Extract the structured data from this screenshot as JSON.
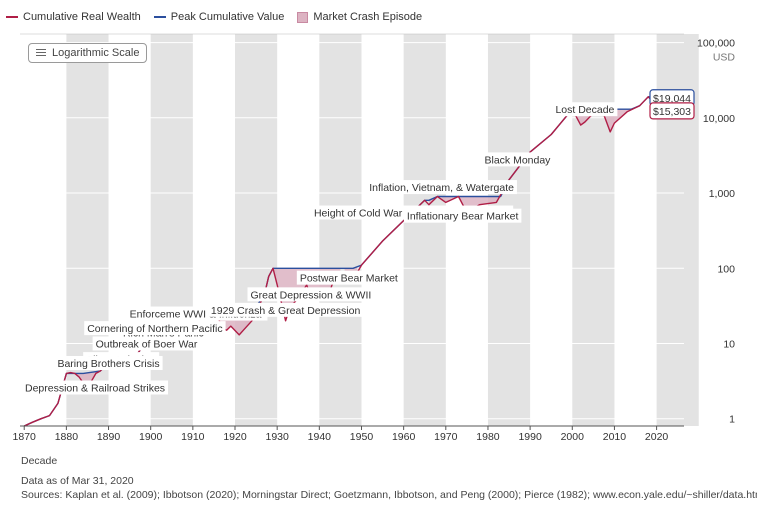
{
  "legend": [
    {
      "label": "Cumulative Real Wealth",
      "color": "#b01e46",
      "kind": "line"
    },
    {
      "label": "Peak Cumulative Value",
      "color": "#2b4f9e",
      "kind": "line"
    },
    {
      "label": "Market Crash Episode",
      "color": "#dcb3c2",
      "kind": "box"
    }
  ],
  "scale_button": {
    "label": "Logarithmic Scale"
  },
  "footer": {
    "xlabel": "Decade",
    "data_as_of": "Data as of Mar 31, 2020",
    "sources": "Sources: Kaplan et al. (2009); Ibbotson (2020); Morningstar Direct; Goetzmann, Ibbotson, and Peng (2000); Pierce (1982); www.econ.yale.edu/~shiller/data.htm."
  },
  "chart_data": {
    "type": "line",
    "y_scale": "log",
    "xlim": [
      1870,
      2020.25
    ],
    "ylim": [
      0.8,
      130000
    ],
    "x_ticks": [
      1870,
      1880,
      1890,
      1900,
      1910,
      1920,
      1930,
      1940,
      1950,
      1960,
      1970,
      1980,
      1990,
      2000,
      2010,
      2020
    ],
    "y_ticks": [
      1,
      10,
      100,
      1000,
      10000,
      100000
    ],
    "y_tick_labels": [
      "1",
      "10",
      "100",
      "1,000",
      "10,000",
      "100,000"
    ],
    "y_unit": "USD",
    "grid": "horizontal",
    "series": [
      {
        "name": "Cumulative Real Wealth",
        "color": "#b01e46",
        "x": [
          1870,
          1872,
          1874,
          1876,
          1878,
          1880,
          1881,
          1882,
          1883,
          1884,
          1885,
          1886,
          1887,
          1888,
          1890,
          1892,
          1893,
          1894,
          1896,
          1897,
          1899,
          1901,
          1902,
          1903,
          1904,
          1906,
          1907,
          1908,
          1910,
          1912,
          1914,
          1916,
          1917,
          1918,
          1919,
          1921,
          1922,
          1924,
          1927,
          1928,
          1929,
          1930,
          1931,
          1932,
          1933,
          1935,
          1937,
          1938,
          1940,
          1942,
          1943,
          1945,
          1946,
          1948,
          1950,
          1955,
          1960,
          1965,
          1966,
          1968,
          1970,
          1973,
          1975,
          1978,
          1982,
          1985,
          1990,
          1995,
          2000,
          2002,
          2003,
          2005,
          2007,
          2009,
          2010,
          2013,
          2016,
          2018,
          2019,
          2020.25
        ],
        "values": [
          0.8,
          0.9,
          1.0,
          1.1,
          1.6,
          4.0,
          4.1,
          4.0,
          3.6,
          3.0,
          2.5,
          3.2,
          4.0,
          4.3,
          5.5,
          6.8,
          5.6,
          5.4,
          6.0,
          7.5,
          10.5,
          16,
          17,
          13,
          16,
          22,
          16,
          19,
          22,
          25,
          19,
          22,
          16,
          15,
          17,
          13,
          15,
          20,
          45,
          78,
          100,
          60,
          35,
          20,
          30,
          40,
          60,
          40,
          47,
          40,
          60,
          90,
          68,
          70,
          110,
          230,
          430,
          800,
          700,
          900,
          750,
          900,
          550,
          700,
          750,
          1500,
          3500,
          6000,
          13000,
          8000,
          8800,
          11500,
          13000,
          6500,
          8500,
          12000,
          14500,
          19000,
          16500,
          15303
        ]
      },
      {
        "name": "Peak Cumulative Value",
        "color": "#2b4f9e",
        "x": [
          1870,
          1872,
          1874,
          1876,
          1878,
          1880,
          1884,
          1888,
          1890,
          1892,
          1895,
          1897,
          1899,
          1901,
          1902,
          1906,
          1910,
          1912,
          1918,
          1921,
          1924,
          1927,
          1928,
          1929,
          1937,
          1943,
          1945,
          1948,
          1950,
          1955,
          1960,
          1965,
          1966,
          1968,
          1983,
          1985,
          1990,
          1995,
          2000,
          2014,
          2016,
          2018,
          2019,
          2020.25
        ],
        "values": [
          0.8,
          0.9,
          1.0,
          1.1,
          1.6,
          4.0,
          4.0,
          4.3,
          5.5,
          6.8,
          6.8,
          7.5,
          10.5,
          16,
          17,
          22,
          22,
          25,
          25,
          25,
          25,
          45,
          78,
          100,
          100,
          100,
          100,
          100,
          110,
          230,
          430,
          800,
          800,
          900,
          900,
          1500,
          3500,
          6000,
          13000,
          13000,
          14500,
          19044,
          19044,
          19044
        ]
      }
    ],
    "crash_episodes": [
      {
        "start": 1881,
        "end": 1888
      },
      {
        "start": 1893,
        "end": 1897
      },
      {
        "start": 1903,
        "end": 1905
      },
      {
        "start": 1907,
        "end": 1908
      },
      {
        "start": 1913,
        "end": 1924
      },
      {
        "start": 1929,
        "end": 1945
      },
      {
        "start": 1946,
        "end": 1949
      },
      {
        "start": 1966,
        "end": 1968
      },
      {
        "start": 1969,
        "end": 1985
      },
      {
        "start": 2000,
        "end": 2014
      },
      {
        "start": 2018,
        "end": 2020.25
      }
    ],
    "end_labels": [
      {
        "series": "Peak Cumulative Value",
        "text": "$19,044",
        "color": "#2b4f9e"
      },
      {
        "series": "Cumulative Real Wealth",
        "text": "$15,303",
        "color": "#b01e46"
      }
    ],
    "annotations": [
      {
        "text": "Lost Decade",
        "x": 2003,
        "y": 13000
      },
      {
        "text": "Black Monday",
        "x": 1987,
        "y": 2800
      },
      {
        "text": "Inflation, Vietnam, & Watergate",
        "x": 1969,
        "y": 1200
      },
      {
        "text": "Height of Cold War & Cuban Missile Crisis",
        "x": 1962,
        "y": 550
      },
      {
        "text": "Inflationary Bear Market",
        "x": 1974,
        "y": 500
      },
      {
        "text": "Enforcement of Sherman Act",
        "x": 1911,
        "y": 25
      },
      {
        "text": "WWI & Influenza",
        "x": 1917,
        "y": 25
      },
      {
        "text": "Panic of 1907",
        "x": 1907,
        "y": 17
      },
      {
        "text": "Rich Man's Panic",
        "x": 1903,
        "y": 14
      },
      {
        "text": "Outbreak of Boer War",
        "x": 1899,
        "y": 10
      },
      {
        "text": "Silver Agitation",
        "x": 1893,
        "y": 6.2
      },
      {
        "text": "Postwar Bear Market",
        "x": 1947,
        "y": 75
      },
      {
        "text": "Great Depression & WWII",
        "x": 1938,
        "y": 45
      },
      {
        "text": "1929 Crash & Great Depression",
        "x": 1932,
        "y": 28
      },
      {
        "text": "Cornering of Northern Pacific",
        "x": 1901,
        "y": 16
      },
      {
        "text": "Baring Brothers Crisis",
        "x": 1890,
        "y": 5.5
      },
      {
        "text": "Depression & Railroad Strikes",
        "x": 1885,
        "y": 2.6
      }
    ]
  }
}
